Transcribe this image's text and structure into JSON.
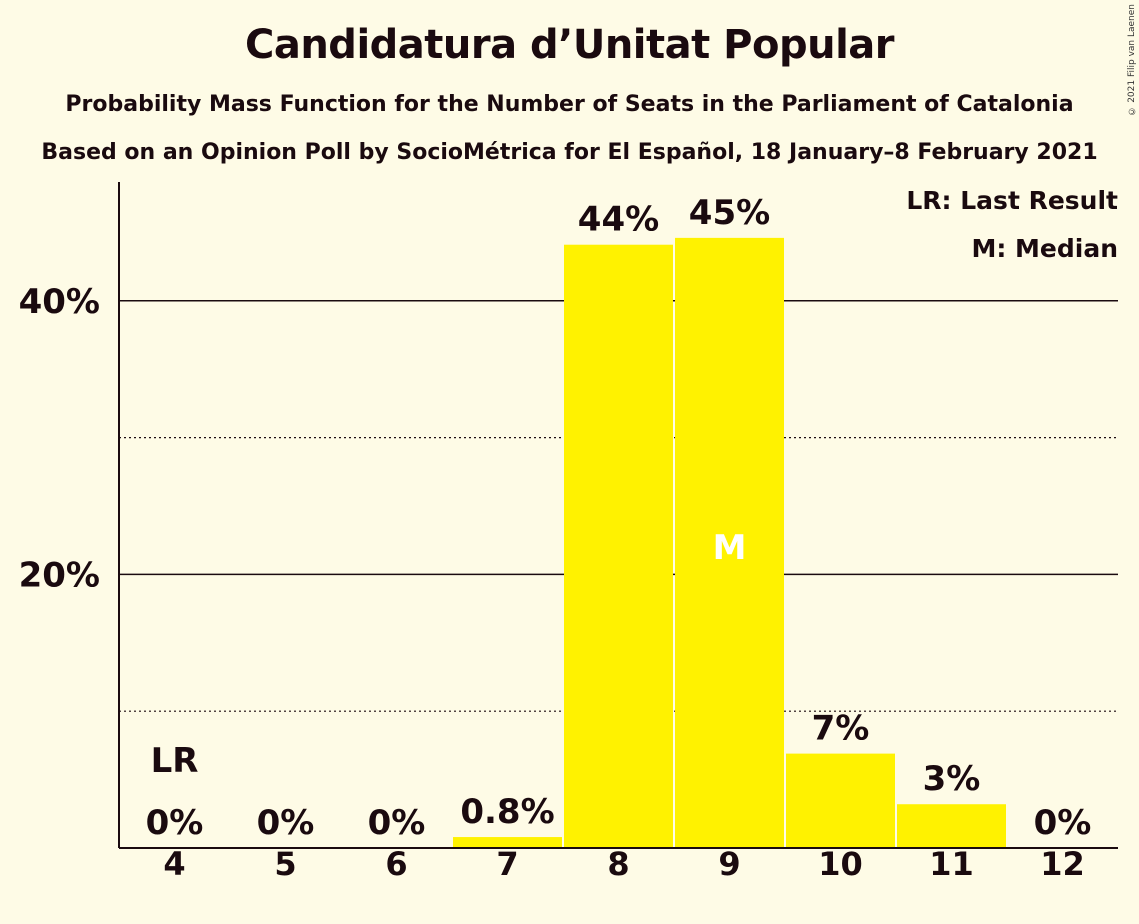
{
  "title": "Candidatura d’Unitat Popular",
  "subtitle1": "Probability Mass Function for the Number of Seats in the Parliament of Catalonia",
  "subtitle2": "Based on an Opinion Poll by SocioMétrica for El Español, 18 January–8 February 2021",
  "copyright": "© 2021 Filip van Laenen",
  "legend": {
    "lr": "LR: Last Result",
    "median": "M: Median"
  },
  "colors": {
    "bar": "#fff200",
    "background": "#fefbe6",
    "text": "#1a0a0f"
  },
  "chart_data": {
    "type": "bar",
    "categories": [
      "4",
      "5",
      "6",
      "7",
      "8",
      "9",
      "10",
      "11",
      "12"
    ],
    "values": [
      0,
      0,
      0,
      0.8,
      44.1,
      44.6,
      6.9,
      3.2,
      0
    ],
    "value_labels": [
      "0%",
      "0%",
      "0%",
      "0.8%",
      "44%",
      "45%",
      "7%",
      "3%",
      "0%"
    ],
    "y_ticks": [
      {
        "value": 20,
        "label": "20%"
      },
      {
        "value": 40,
        "label": "40%"
      }
    ],
    "y_minor_gridlines": [
      10,
      30
    ],
    "ylim": [
      0,
      48.5
    ],
    "last_result": {
      "category": "4",
      "label": "LR"
    },
    "median": {
      "category": "9",
      "label": "M"
    },
    "legend_position": "top-right"
  }
}
